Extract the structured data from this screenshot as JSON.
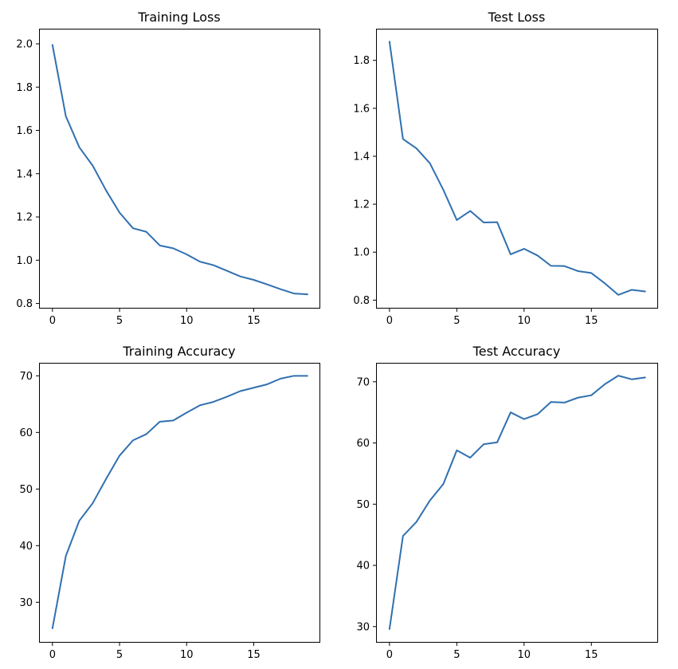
{
  "colors": {
    "line": "#3070b0"
  },
  "chart_data": [
    {
      "type": "line",
      "title": "Training Loss",
      "xlim": [
        -1.0,
        19.9
      ],
      "ylim": [
        0.78,
        2.07
      ],
      "xticks": [
        0,
        5,
        10,
        15
      ],
      "yticks": [
        0.8,
        1.0,
        1.2,
        1.4,
        1.6,
        1.8,
        2.0
      ],
      "x": [
        0,
        1,
        2,
        3,
        4,
        5,
        6,
        7,
        8,
        9,
        10,
        11,
        12,
        13,
        14,
        15,
        16,
        17,
        18,
        19
      ],
      "series": [
        {
          "values": [
            1.995,
            1.665,
            1.522,
            1.437,
            1.322,
            1.22,
            1.148,
            1.131,
            1.068,
            1.055,
            1.027,
            0.993,
            0.977,
            0.951,
            0.925,
            0.909,
            0.888,
            0.866,
            0.846,
            0.842
          ]
        }
      ]
    },
    {
      "type": "line",
      "title": "Test Loss",
      "xlim": [
        -1.0,
        19.9
      ],
      "ylim": [
        0.768,
        1.932
      ],
      "xticks": [
        0,
        5,
        10,
        15
      ],
      "yticks": [
        0.8,
        1.0,
        1.2,
        1.4,
        1.6,
        1.8
      ],
      "x": [
        0,
        1,
        2,
        3,
        4,
        5,
        6,
        7,
        8,
        9,
        10,
        11,
        12,
        13,
        14,
        15,
        16,
        17,
        18,
        19
      ],
      "series": [
        {
          "values": [
            1.878,
            1.472,
            1.433,
            1.371,
            1.26,
            1.134,
            1.172,
            1.124,
            1.125,
            0.991,
            1.014,
            0.986,
            0.943,
            0.942,
            0.921,
            0.913,
            0.87,
            0.822,
            0.843,
            0.836
          ]
        }
      ]
    },
    {
      "type": "line",
      "title": "Training Accuracy",
      "xlim": [
        -1.0,
        19.9
      ],
      "ylim": [
        23.0,
        72.3
      ],
      "xticks": [
        0,
        5,
        10,
        15
      ],
      "yticks": [
        30,
        40,
        50,
        60,
        70
      ],
      "x": [
        0,
        1,
        2,
        3,
        4,
        5,
        6,
        7,
        8,
        9,
        10,
        11,
        12,
        13,
        14,
        15,
        16,
        17,
        18,
        19
      ],
      "series": [
        {
          "values": [
            25.4,
            38.2,
            44.4,
            47.5,
            51.8,
            55.9,
            58.6,
            59.7,
            61.9,
            62.1,
            63.5,
            64.8,
            65.4,
            66.3,
            67.3,
            67.9,
            68.5,
            69.5,
            70.0,
            70.0
          ]
        }
      ]
    },
    {
      "type": "line",
      "title": "Test Accuracy",
      "xlim": [
        -1.0,
        19.9
      ],
      "ylim": [
        27.5,
        73.1
      ],
      "xticks": [
        0,
        5,
        10,
        15
      ],
      "yticks": [
        30,
        40,
        50,
        60,
        70
      ],
      "x": [
        0,
        1,
        2,
        3,
        4,
        5,
        6,
        7,
        8,
        9,
        10,
        11,
        12,
        13,
        14,
        15,
        16,
        17,
        18,
        19
      ],
      "series": [
        {
          "values": [
            29.6,
            44.8,
            47.1,
            50.6,
            53.3,
            58.8,
            57.6,
            59.8,
            60.1,
            65.0,
            63.9,
            64.7,
            66.7,
            66.6,
            67.4,
            67.8,
            69.6,
            71.0,
            70.4,
            70.7
          ]
        }
      ]
    }
  ]
}
